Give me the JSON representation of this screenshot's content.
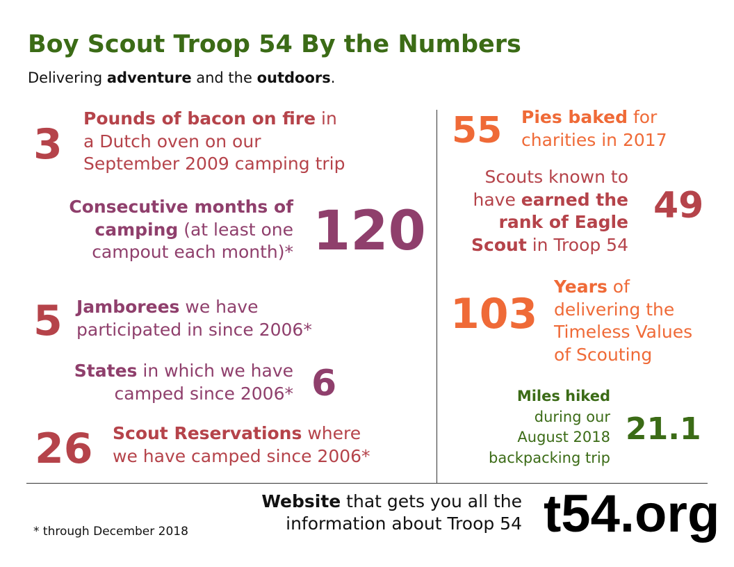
{
  "title": "Boy Scout Troop 54 By the Numbers",
  "subtitle": {
    "part1": "Delivering ",
    "bold1": "adventure",
    "part2": " and the ",
    "bold2": "outdoors",
    "part3": "."
  },
  "stats": {
    "bacon": {
      "number": "3",
      "bold": "Pounds of bacon on fire",
      "line1_rest": " in",
      "line2": "a Dutch oven on our",
      "line3": "September 2009 camping trip"
    },
    "months": {
      "number": "120",
      "bold1": "Consecutive months of",
      "bold2": "camping",
      "line2_rest": " (at least one",
      "line3": "campout each month)*"
    },
    "jamborees": {
      "number": "5",
      "bold": "Jamborees",
      "line1_rest": " we have",
      "line2": "participated in since 2006*"
    },
    "states": {
      "number": "6",
      "bold": "States",
      "line1_rest": " in which we have",
      "line2": "camped since 2006*"
    },
    "reservations": {
      "number": "26",
      "bold": "Scout Reservations",
      "line1_rest": " where",
      "line2": "we have camped since 2006*"
    },
    "pies": {
      "number": "55",
      "bold": "Pies baked",
      "line1_rest": " for",
      "line2": "charities in 2017"
    },
    "eagle": {
      "number": "49",
      "line1": "Scouts known to",
      "line2_pre": "have ",
      "bold2": "earned the",
      "bold3": "rank of Eagle",
      "bold4": "Scout",
      "line4_rest": " in Troop 54"
    },
    "years": {
      "number": "103",
      "bold": "Years",
      "line1_rest": " of",
      "line2": "delivering the",
      "line3": "Timeless Values",
      "line4": "of Scouting"
    },
    "miles": {
      "number": "21.1",
      "bold": "Miles hiked",
      "line2": "during our",
      "line3": "August 2018",
      "line4": "backpacking trip"
    }
  },
  "footer": {
    "note": "* through December 2018",
    "website_bold": "Website",
    "website_line1_rest": " that gets you all the",
    "website_line2": "information about Troop 54",
    "url": "t54.org"
  },
  "colors": {
    "green": "#3b6b16",
    "red": "#b5434a",
    "plum": "#8f3f6c",
    "orange": "#ef6a37"
  }
}
